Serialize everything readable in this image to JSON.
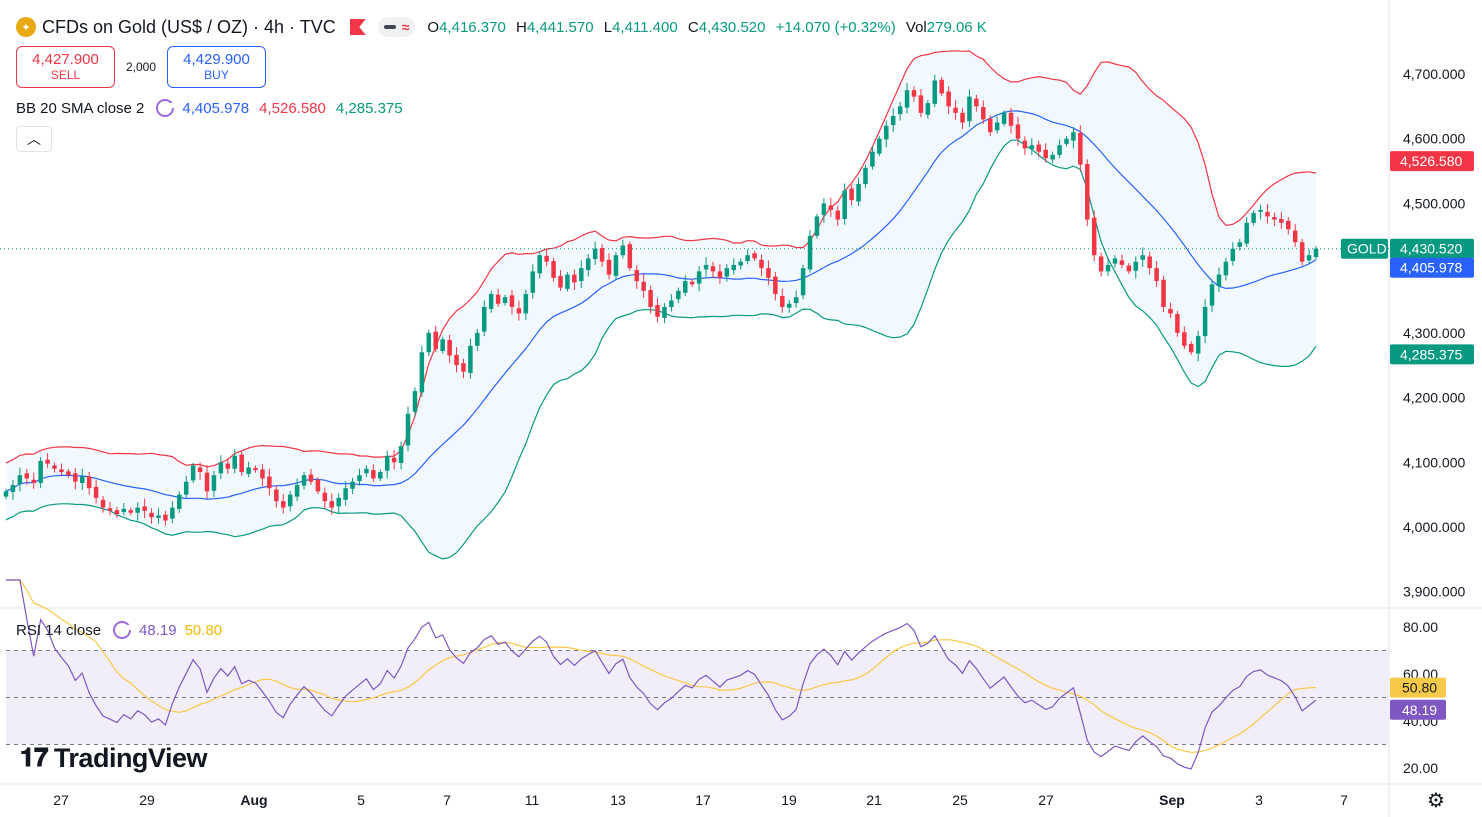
{
  "header": {
    "symbol_title": "CFDs on Gold (US$ / OZ) · 4h · TVC",
    "open_label": "O",
    "open": "4,416.370",
    "high_label": "H",
    "high": "4,441.570",
    "low_label": "L",
    "low": "4,411.400",
    "close_label": "C",
    "close": "4,430.520",
    "change": "+14.070 (+0.32%)",
    "vol_label": "Vol",
    "vol": "279.06 K"
  },
  "trade": {
    "sell_price": "4,427.900",
    "sell_label": "SELL",
    "quantity": "2,000",
    "buy_price": "4,429.900",
    "buy_label": "BUY"
  },
  "bb_indicator": {
    "label": "BB 20 SMA close 2",
    "basis": "4,405.978",
    "upper": "4,526.580",
    "lower": "4,285.375"
  },
  "rsi_indicator": {
    "label": "RSI 14 close",
    "rsi": "48.19",
    "ma": "50.80"
  },
  "branding": {
    "name": "TradingView",
    "logo_icon": "tradingview-logo-icon"
  },
  "icons": {
    "settings": "gear-icon",
    "collapse": "chevron-up-icon",
    "cycle": "cycle-icon"
  },
  "colors": {
    "up": "#089981",
    "down": "#f23645",
    "basis": "#2962ff",
    "upper": "#f23645",
    "lower": "#089981",
    "rsi": "#7e57c2",
    "rsi_ma": "#f7c948"
  },
  "chart_data": [
    {
      "type": "candlestick",
      "title": "CFDs on Gold (US$ / OZ) · 4h · TVC",
      "x_ticks": [
        "27",
        "29",
        "Aug",
        "5",
        "7",
        "11",
        "13",
        "17",
        "19",
        "21",
        "25",
        "27",
        "Sep",
        "3",
        "7"
      ],
      "y_ticks": [
        "3,900.000",
        "4,000.000",
        "4,100.000",
        "4,200.000",
        "4,300.000",
        "4,400.000",
        "4,500.000",
        "4,600.000",
        "4,700.000"
      ],
      "ylim": [
        3880,
        4790
      ],
      "closes": [
        4055,
        4065,
        4080,
        4075,
        4068,
        4102,
        4098,
        4090,
        4085,
        4080,
        4070,
        4078,
        4060,
        4045,
        4030,
        4025,
        4020,
        4028,
        4022,
        4030,
        4025,
        4015,
        4018,
        4010,
        4030,
        4050,
        4070,
        4095,
        4085,
        4055,
        4080,
        4100,
        4090,
        4110,
        4085,
        4092,
        4088,
        4075,
        4060,
        4040,
        4030,
        4050,
        4065,
        4080,
        4070,
        4055,
        4040,
        4030,
        4045,
        4060,
        4070,
        4080,
        4090,
        4075,
        4085,
        4110,
        4100,
        4125,
        4175,
        4210,
        4270,
        4300,
        4275,
        4290,
        4265,
        4250,
        4240,
        4280,
        4300,
        4340,
        4360,
        4345,
        4355,
        4340,
        4330,
        4360,
        4395,
        4420,
        4410,
        4385,
        4370,
        4390,
        4378,
        4400,
        4415,
        4430,
        4410,
        4390,
        4420,
        4435,
        4400,
        4380,
        4365,
        4340,
        4325,
        4340,
        4350,
        4365,
        4380,
        4375,
        4395,
        4405,
        4395,
        4385,
        4400,
        4405,
        4410,
        4420,
        4415,
        4400,
        4385,
        4360,
        4340,
        4345,
        4355,
        4400,
        4450,
        4480,
        4500,
        4490,
        4475,
        4520,
        4505,
        4530,
        4555,
        4580,
        4600,
        4620,
        4635,
        4650,
        4675,
        4665,
        4640,
        4655,
        4690,
        4670,
        4650,
        4640,
        4625,
        4665,
        4650,
        4630,
        4610,
        4625,
        4640,
        4620,
        4600,
        4585,
        4590,
        4580,
        4570,
        4575,
        4590,
        4600,
        4610,
        4560,
        4475,
        4420,
        4395,
        4405,
        4415,
        4405,
        4395,
        4410,
        4420,
        4400,
        4380,
        4340,
        4330,
        4300,
        4280,
        4270,
        4295,
        4340,
        4375,
        4390,
        4410,
        4430,
        4440,
        4470,
        4485,
        4490,
        4480,
        4475,
        4470,
        4460,
        4440,
        4410,
        4420,
        4430
      ],
      "rsi_ticks": [
        "20.00",
        "40.00",
        "60.00",
        "80.00"
      ],
      "rsi_band": [
        30,
        70
      ],
      "rsi_last": 48.19,
      "rsi_ma_last": 50.8,
      "last_price_label": "GOLD",
      "price_labels": {
        "upper": "4,526.580",
        "close": "4,430.520",
        "basis": "4,405.978",
        "lower": "4,285.375"
      }
    }
  ]
}
